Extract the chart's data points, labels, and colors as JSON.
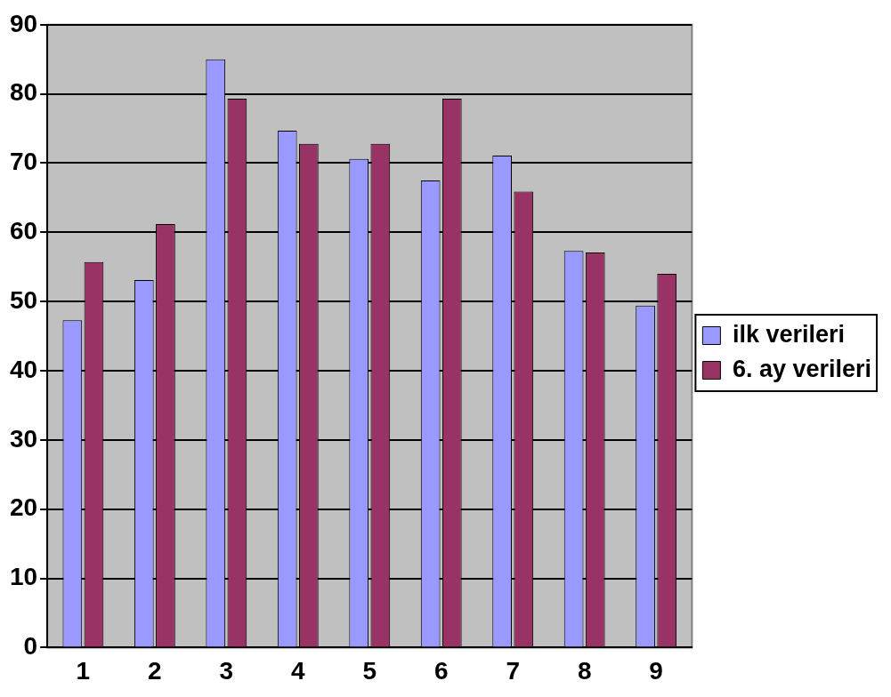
{
  "chart_data": {
    "type": "bar",
    "categories": [
      "1",
      "2",
      "3",
      "4",
      "5",
      "6",
      "7",
      "8",
      "9"
    ],
    "series": [
      {
        "name": "ilk verileri",
        "color": "#9999ff",
        "values": [
          47.3,
          53.1,
          85,
          74.7,
          70.6,
          67.5,
          71.1,
          57.3,
          49.4
        ]
      },
      {
        "name": "6. ay verileri",
        "color": "#993366",
        "values": [
          55.7,
          61.2,
          79.3,
          72.8,
          72.8,
          79.3,
          65.9,
          57.1,
          54
        ]
      }
    ],
    "ylim": [
      0,
      90
    ],
    "yticks": [
      0,
      10,
      20,
      30,
      40,
      50,
      60,
      70,
      80,
      90
    ],
    "grid": "y",
    "legend": "right"
  }
}
